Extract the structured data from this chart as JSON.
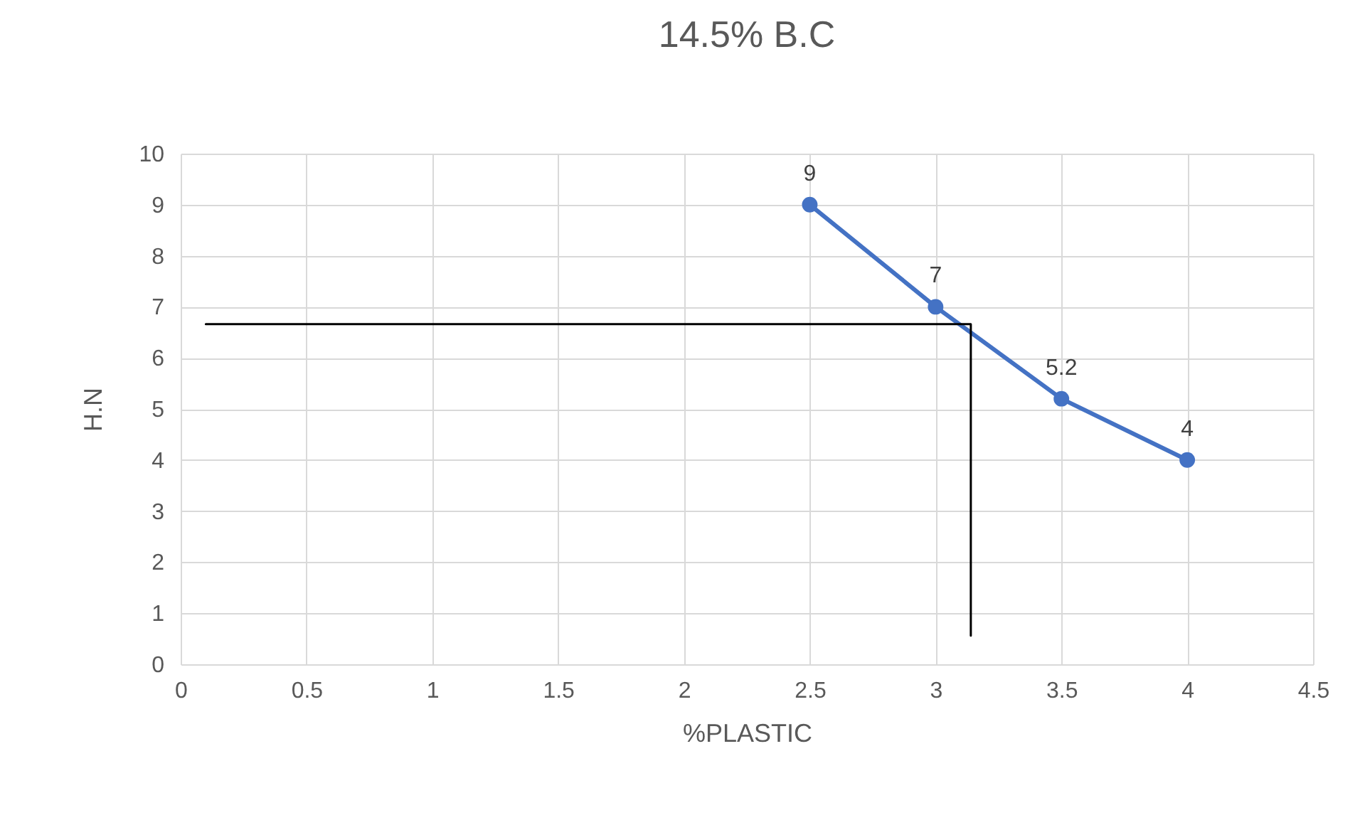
{
  "chart_data": {
    "type": "line",
    "title": "14.5% B.C",
    "xlabel": "%PLASTIC",
    "ylabel": "H.N",
    "xlim": [
      0,
      4.5
    ],
    "xticks": [
      0,
      0.5,
      1,
      1.5,
      2,
      2.5,
      3,
      3.5,
      4,
      4.5
    ],
    "ylim": [
      0,
      10
    ],
    "yticks": [
      0,
      1,
      2,
      3,
      4,
      5,
      6,
      7,
      8,
      9,
      10
    ],
    "grid": true,
    "marker": "circle",
    "series": [
      {
        "color": "#4472c4",
        "x": [
          2.5,
          3,
          3.5,
          4
        ],
        "values": [
          9,
          7,
          5.2,
          4
        ],
        "value_labels": [
          "9",
          "7",
          "5.2",
          "4"
        ]
      },
      {
        "color": "#000000",
        "marker": "none",
        "x": [
          0.1,
          3.14,
          3.14
        ],
        "values": [
          6.66,
          6.66,
          0.56
        ]
      }
    ]
  }
}
